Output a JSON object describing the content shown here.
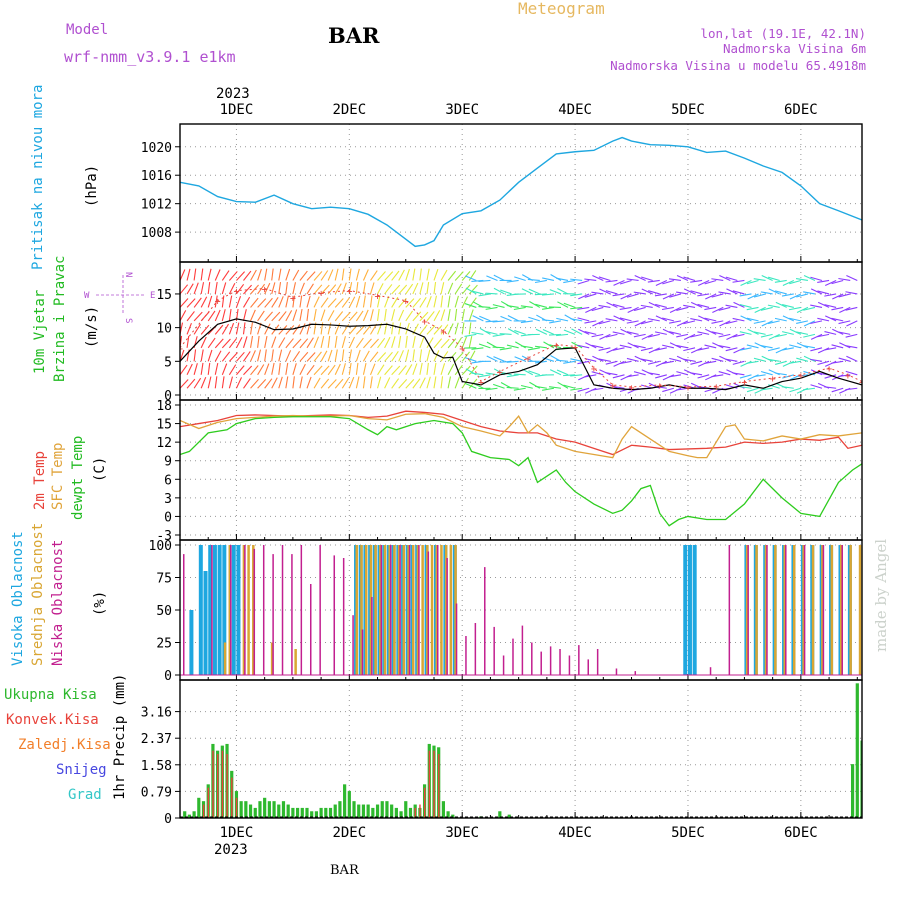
{
  "header": {
    "model_label": "Model",
    "model_name": "wrf-nmm_v3.9.1 e1km",
    "station": "BAR",
    "title": "Meteogram",
    "lonlat": "lon,lat (19.1E, 42.1N)",
    "elevation": "Nadmorska Visina 6m",
    "model_elevation": "Nadmorska Visina u modelu 65.4918m",
    "footer_station": "BAR",
    "watermark": "made by Angel"
  },
  "time_axis": {
    "year": "2023",
    "day_labels": [
      "1DEC",
      "2DEC",
      "3DEC",
      "4DEC",
      "5DEC",
      "6DEC"
    ],
    "day_positions_hours": [
      0,
      24,
      48,
      72,
      96,
      120
    ],
    "range_hours": [
      -12,
      133
    ]
  },
  "colors": {
    "pressure": "#1ea7e0",
    "temp2m": "#e8433b",
    "sfc": "#e0a43b",
    "dewpt": "#2ecc1e",
    "high_cloud": "#1ea7e0",
    "mid_cloud": "#d9a633",
    "low_cloud": "#c21f8f",
    "rain_total": "#2eb82e",
    "rain_conv": "#e8433b",
    "freezing": "#f27f2a",
    "snow": "#4747e0",
    "graupel": "#33c7c7",
    "wind_label": "#22bb22",
    "model_purple": "#b050d0"
  },
  "chart_data": [
    {
      "type": "line",
      "panel": "pressure",
      "ylabel_title": "Pritisak na nivou mora",
      "ylabel_unit": "(hPa)",
      "yticks": [
        "1008",
        "1012",
        "1016",
        "1020"
      ],
      "ylim": [
        1004.5,
        1022.5
      ],
      "grid": true,
      "series": [
        {
          "x": [
            -12,
            -8,
            -4,
            0,
            4,
            8,
            12,
            16,
            20,
            24,
            28,
            32,
            36,
            38,
            40,
            42,
            44,
            48,
            52,
            56,
            60,
            64,
            68,
            72,
            76,
            80,
            82,
            84,
            88,
            92,
            96,
            100,
            104,
            108,
            112,
            116,
            120,
            124,
            128,
            133
          ],
          "y": [
            1015,
            1014.5,
            1013,
            1012.3,
            1012.2,
            1013.2,
            1012,
            1011.3,
            1011.5,
            1011.3,
            1010.5,
            1009,
            1007,
            1006,
            1006.2,
            1006.8,
            1009,
            1010.6,
            1011,
            1012.5,
            1015,
            1017,
            1019,
            1019.3,
            1019.5,
            1020.8,
            1021.3,
            1020.8,
            1020.3,
            1020.2,
            1020,
            1019.2,
            1019.4,
            1018.4,
            1017.3,
            1016.4,
            1014.5,
            1012,
            1011,
            1009.7
          ]
        }
      ]
    },
    {
      "type": "line",
      "panel": "wind",
      "ylabel_title": "10m Vjetar",
      "ylabel_title2": "Brzina i Pravac",
      "ylabel_unit": "(m/s)",
      "compass": {
        "n": "N",
        "s": "S",
        "e": "E",
        "w": "W"
      },
      "yticks": [
        "0",
        "5",
        "10",
        "15"
      ],
      "ylim": [
        0,
        19
      ],
      "grid": true,
      "series": [
        {
          "name": "speed",
          "x": [
            -12,
            -8,
            -4,
            0,
            4,
            8,
            12,
            16,
            20,
            24,
            28,
            32,
            36,
            40,
            42,
            44,
            46,
            48,
            52,
            56,
            60,
            64,
            68,
            72,
            76,
            80,
            84,
            88,
            92,
            96,
            100,
            104,
            108,
            112,
            116,
            120,
            124,
            128,
            133
          ],
          "y": [
            5,
            8,
            10.5,
            11.3,
            10.8,
            9.7,
            9.8,
            10.5,
            10.4,
            10.2,
            10.3,
            10.5,
            9.8,
            8.6,
            6.2,
            5.5,
            5.6,
            2,
            1.5,
            3,
            3.5,
            4.5,
            6.8,
            7,
            1.5,
            1,
            0.8,
            1,
            1.5,
            1,
            1,
            0.8,
            1.5,
            1,
            2,
            2.5,
            3.5,
            2.5,
            1.5
          ]
        },
        {
          "name": "gust",
          "x": [
            -12,
            -4,
            0,
            6,
            12,
            18,
            24,
            30,
            36,
            40,
            44,
            48,
            52,
            56,
            62,
            68,
            72,
            76,
            80,
            84,
            90,
            96,
            102,
            108,
            114,
            120,
            126,
            130,
            133
          ],
          "y": [
            7,
            14,
            15.5,
            15.8,
            14.5,
            15.2,
            15.5,
            14.8,
            14,
            11,
            9.5,
            7,
            2,
            3.5,
            5.5,
            7.5,
            7.2,
            4,
            1.5,
            1.2,
            1.5,
            1.2,
            1.3,
            2,
            2.5,
            3,
            4,
            3,
            2
          ]
        }
      ]
    },
    {
      "type": "line",
      "panel": "temperature",
      "ylabel_title": "2m Temp",
      "ylabel_title2": "SFC Temp",
      "ylabel_title3": "dewpt Temp",
      "ylabel_unit": "(C)",
      "yticks": [
        "-3",
        "0",
        "3",
        "6",
        "9",
        "12",
        "15",
        "18"
      ],
      "ylim": [
        -3,
        18
      ],
      "grid": true,
      "series": [
        {
          "name": "2m Temp",
          "x": [
            -12,
            -8,
            -4,
            0,
            4,
            8,
            12,
            16,
            20,
            24,
            28,
            32,
            36,
            40,
            44,
            48,
            52,
            56,
            60,
            64,
            68,
            72,
            76,
            80,
            84,
            88,
            92,
            96,
            100,
            104,
            108,
            112,
            116,
            120,
            124,
            128,
            130,
            133
          ],
          "y": [
            14.5,
            15,
            15.5,
            16.3,
            16.4,
            16.3,
            16.2,
            16.3,
            16.4,
            16.3,
            16,
            16.2,
            17,
            16.8,
            16.5,
            15.5,
            14.5,
            13.8,
            13.5,
            13.5,
            12.5,
            12,
            11,
            10,
            11.5,
            11.2,
            10.8,
            10.9,
            11,
            11.2,
            12,
            11.8,
            12,
            12.5,
            12.3,
            12.8,
            11,
            11.5
          ]
        },
        {
          "name": "SFC Temp",
          "x": [
            -12,
            -8,
            -4,
            0,
            4,
            8,
            12,
            16,
            20,
            24,
            28,
            32,
            36,
            40,
            44,
            48,
            52,
            56,
            58,
            60,
            62,
            64,
            66,
            68,
            72,
            76,
            80,
            82,
            84,
            88,
            92,
            96,
            98,
            100,
            104,
            106,
            108,
            112,
            116,
            120,
            124,
            128,
            133
          ],
          "y": [
            15.5,
            14.2,
            15.2,
            15.8,
            16,
            16.2,
            16.3,
            16.2,
            16.2,
            16.3,
            15.8,
            15.6,
            16.5,
            16.6,
            16,
            14.5,
            13.8,
            13,
            14.5,
            16.2,
            13.5,
            14.8,
            13.5,
            11.5,
            10.5,
            10,
            9.5,
            12.5,
            14.5,
            12.5,
            10.5,
            9.8,
            9.5,
            9.5,
            14.5,
            14.8,
            12.5,
            12.2,
            13,
            12.5,
            13.2,
            13,
            13.5
          ]
        },
        {
          "name": "dewpt Temp",
          "x": [
            -12,
            -10,
            -6,
            -2,
            0,
            4,
            8,
            12,
            16,
            20,
            24,
            28,
            30,
            32,
            34,
            38,
            42,
            46,
            48,
            50,
            54,
            58,
            60,
            62,
            64,
            66,
            68,
            70,
            72,
            76,
            80,
            82,
            84,
            86,
            88,
            90,
            92,
            94,
            96,
            100,
            104,
            108,
            112,
            116,
            120,
            124,
            128,
            131,
            133
          ],
          "y": [
            10,
            10.5,
            13.5,
            14,
            15,
            15.8,
            16,
            16.1,
            16.1,
            16.1,
            15.8,
            14,
            13.2,
            14.5,
            14,
            15,
            15.5,
            15,
            13.5,
            10.5,
            9.5,
            9.2,
            8.2,
            9.5,
            5.5,
            6.5,
            7.5,
            5.5,
            4,
            2,
            0.5,
            1,
            2.5,
            4.5,
            5,
            0.5,
            -1.5,
            -0.5,
            0,
            -0.5,
            -0.5,
            2,
            6,
            3,
            0.5,
            0,
            5.5,
            7.5,
            8.5
          ]
        }
      ]
    },
    {
      "type": "bar",
      "panel": "clouds",
      "ylabel_title": "Visoka Oblacnost",
      "ylabel_title2": "Srednja Oblacnost",
      "ylabel_title3": "Niska Oblacnost",
      "ylabel_unit": "(%)",
      "yticks": [
        "0",
        "25",
        "50",
        "75",
        "100"
      ],
      "ylim": [
        0,
        100
      ],
      "grid": true,
      "series": [
        {
          "name": "Visoka Oblacnost",
          "x": [
            -10,
            -8,
            -7,
            -6,
            -5,
            -4,
            -3,
            -1,
            0,
            25,
            26,
            27,
            28,
            29,
            30,
            31,
            32,
            33,
            34,
            35,
            36,
            37,
            38,
            40,
            42,
            44,
            46,
            95,
            96,
            97,
            108,
            110,
            112,
            114,
            116,
            118,
            120,
            122,
            124,
            126,
            128,
            130
          ],
          "y": [
            50,
            100,
            80,
            100,
            100,
            100,
            100,
            100,
            100,
            100,
            100,
            100,
            100,
            100,
            100,
            100,
            100,
            100,
            100,
            100,
            100,
            100,
            100,
            100,
            100,
            100,
            100,
            100,
            100,
            100,
            100,
            100,
            100,
            100,
            100,
            100,
            100,
            100,
            100,
            100,
            100,
            100
          ]
        },
        {
          "name": "Srednja Oblacnost",
          "x": [
            -3,
            -2,
            1,
            2,
            3,
            7,
            12,
            25,
            26,
            27,
            28,
            29,
            30,
            31,
            32,
            33,
            34,
            35,
            36,
            37,
            38,
            39,
            40,
            41,
            42,
            43,
            44,
            45,
            46,
            108,
            110,
            112,
            114,
            116,
            118,
            120,
            122,
            124,
            126,
            128,
            130,
            132
          ],
          "y": [
            25,
            100,
            100,
            100,
            100,
            25,
            20,
            100,
            100,
            100,
            100,
            100,
            100,
            100,
            100,
            100,
            100,
            100,
            100,
            100,
            100,
            100,
            100,
            100,
            100,
            100,
            100,
            100,
            100,
            100,
            100,
            100,
            100,
            100,
            100,
            100,
            100,
            100,
            100,
            100,
            100,
            100
          ]
        },
        {
          "name": "Niska Oblacnost",
          "x": [
            -12,
            -6,
            -2,
            1,
            3,
            5,
            7,
            9,
            11,
            13,
            15,
            17,
            20,
            22,
            24,
            26,
            28,
            30,
            32,
            34,
            36,
            38,
            40,
            42,
            44,
            46,
            48,
            50,
            52,
            54,
            56,
            58,
            60,
            62,
            64,
            66,
            68,
            70,
            72,
            74,
            76,
            80,
            84,
            100,
            104,
            108,
            112,
            116,
            120,
            124,
            128
          ],
          "y": [
            93,
            100,
            100,
            100,
            97,
            100,
            93,
            100,
            93,
            100,
            70,
            100,
            92,
            90,
            46,
            35,
            60,
            100,
            100,
            100,
            100,
            100,
            95,
            100,
            90,
            55,
            30,
            40,
            83,
            37,
            15,
            28,
            38,
            25,
            18,
            22,
            20,
            15,
            23,
            12,
            20,
            5,
            3,
            6,
            100,
            100,
            100,
            100,
            100,
            100,
            100
          ]
        }
      ]
    },
    {
      "type": "bar",
      "panel": "precipitation",
      "legend": [
        "Ukupna Kisa",
        "Konvek.Kisa",
        "Zaledj.Kisa",
        "Snijeg",
        "Grad"
      ],
      "ylabel_unit": "1hr Precip (mm)",
      "yticks": [
        "0",
        "0.79",
        "1.58",
        "2.37",
        "3.16"
      ],
      "ylim": [
        0,
        3.95
      ],
      "grid": true,
      "series": [
        {
          "name": "Ukupna Kisa",
          "x": [
            -11,
            -10,
            -9,
            -8,
            -7,
            -6,
            -5,
            -4,
            -3,
            -2,
            -1,
            0,
            1,
            2,
            3,
            4,
            5,
            6,
            7,
            8,
            9,
            10,
            11,
            12,
            13,
            14,
            15,
            16,
            17,
            18,
            19,
            20,
            21,
            22,
            23,
            24,
            25,
            26,
            27,
            28,
            29,
            30,
            31,
            32,
            33,
            34,
            35,
            36,
            37,
            38,
            39,
            40,
            41,
            42,
            43,
            44,
            45,
            46,
            52,
            56,
            58,
            131,
            132,
            133
          ],
          "y": [
            0.2,
            0.1,
            0.2,
            0.6,
            0.5,
            1.0,
            2.2,
            2.0,
            2.15,
            2.2,
            1.4,
            0.8,
            0.5,
            0.5,
            0.4,
            0.3,
            0.5,
            0.6,
            0.5,
            0.5,
            0.4,
            0.5,
            0.4,
            0.3,
            0.3,
            0.3,
            0.3,
            0.2,
            0.2,
            0.3,
            0.3,
            0.3,
            0.4,
            0.5,
            1.0,
            0.8,
            0.5,
            0.4,
            0.4,
            0.4,
            0.3,
            0.4,
            0.5,
            0.5,
            0.4,
            0.3,
            0.2,
            0.5,
            0.3,
            0.4,
            0.3,
            1.0,
            2.2,
            2.15,
            2.1,
            0.5,
            0.2,
            0.1,
            0.05,
            0.2,
            0.1,
            1.6,
            4.0,
            2.3
          ]
        },
        {
          "name": "Konvek.Kisa",
          "x": [
            -7,
            -6,
            -5,
            -4,
            -3,
            -2,
            -1,
            0,
            38,
            39,
            40,
            41,
            42,
            43
          ],
          "y": [
            0.4,
            0.9,
            2.0,
            1.9,
            2.0,
            1.9,
            1.2,
            0.6,
            0.3,
            0.4,
            0.9,
            2.0,
            2.0,
            1.9
          ]
        }
      ]
    }
  ]
}
